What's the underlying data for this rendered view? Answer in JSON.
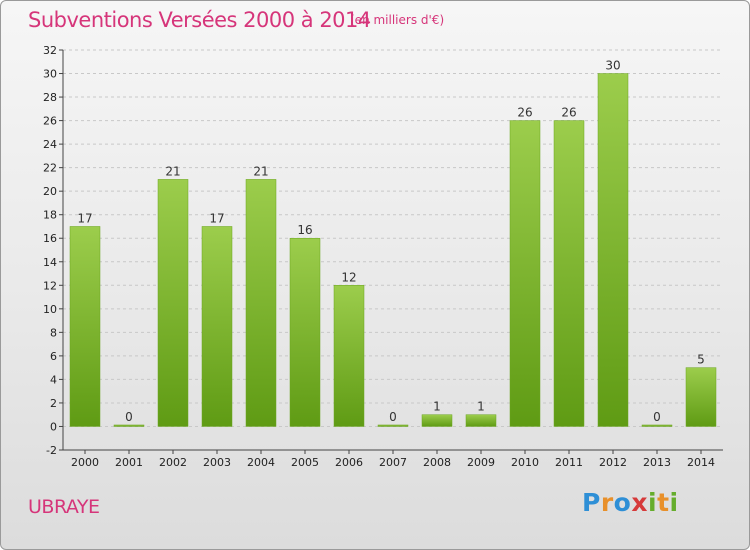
{
  "header": {
    "title": "Subventions Versées 2000 à 2014",
    "subtitle": "(en milliers d'€)"
  },
  "footer": {
    "commune": "UBRAYE",
    "logo_text": "Proxiti"
  },
  "colors": {
    "title": "#d6357a",
    "bar_top": "#9ccd4c",
    "bar_bottom": "#5f9b14",
    "grid": "#c8c8c8"
  },
  "chart_data": {
    "type": "bar",
    "categories": [
      "2000",
      "2001",
      "2002",
      "2003",
      "2004",
      "2005",
      "2006",
      "2007",
      "2008",
      "2009",
      "2010",
      "2011",
      "2012",
      "2013",
      "2014"
    ],
    "values": [
      17,
      0,
      21,
      17,
      21,
      16,
      12,
      0,
      1,
      1,
      26,
      26,
      30,
      0,
      5
    ],
    "data_labels": [
      "17",
      "0",
      "21",
      "17",
      "21",
      "16",
      "12",
      "0",
      "1",
      "1",
      "26",
      "26",
      "30",
      "0",
      "5"
    ],
    "title": "Subventions Versées 2000 à 2014",
    "xlabel": "",
    "ylabel": "",
    "ylim": [
      -2,
      32
    ],
    "yticks": [
      "32",
      "30",
      "28",
      "26",
      "24",
      "22",
      "20",
      "18",
      "16",
      "14",
      "12",
      "10",
      "8",
      "6",
      "4",
      "2",
      "0",
      "-2"
    ],
    "grid": true,
    "legend": "none"
  }
}
